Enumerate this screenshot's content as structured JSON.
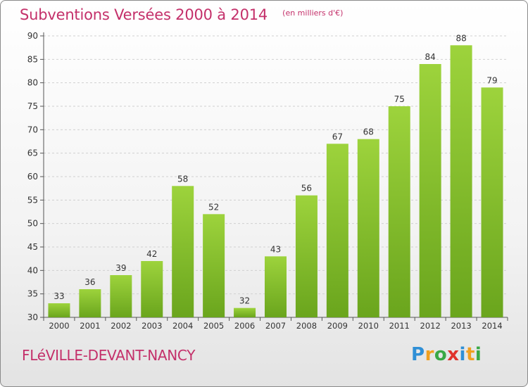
{
  "header": {
    "title": "Subventions Versées 2000 à 2014",
    "subtitle": "(en milliers d'€)"
  },
  "footer": {
    "commune": "FLéVILLE-DEVANT-NANCY",
    "logo_letters": [
      {
        "ch": "P",
        "color": "#2f8fd6"
      },
      {
        "ch": "r",
        "color": "#f0a020"
      },
      {
        "ch": "o",
        "color": "#3aa845"
      },
      {
        "ch": "x",
        "color": "#e0322c"
      },
      {
        "ch": "i",
        "color": "#2f8fd6"
      },
      {
        "ch": "t",
        "color": "#f0a020"
      },
      {
        "ch": "i",
        "color": "#3aa845"
      }
    ]
  },
  "chart_data": {
    "type": "bar",
    "categories": [
      "2000",
      "2001",
      "2002",
      "2003",
      "2004",
      "2005",
      "2006",
      "2007",
      "2008",
      "2009",
      "2010",
      "2011",
      "2012",
      "2013",
      "2014"
    ],
    "values": [
      33,
      36,
      39,
      42,
      58,
      52,
      32,
      43,
      56,
      67,
      68,
      75,
      84,
      88,
      79
    ],
    "ylim": [
      30,
      90
    ],
    "yticks": [
      30,
      35,
      40,
      45,
      50,
      55,
      60,
      65,
      70,
      75,
      80,
      85,
      90
    ],
    "grid": true,
    "bar_color_light": "#9dd33c",
    "bar_color_dark": "#6aa51d"
  }
}
